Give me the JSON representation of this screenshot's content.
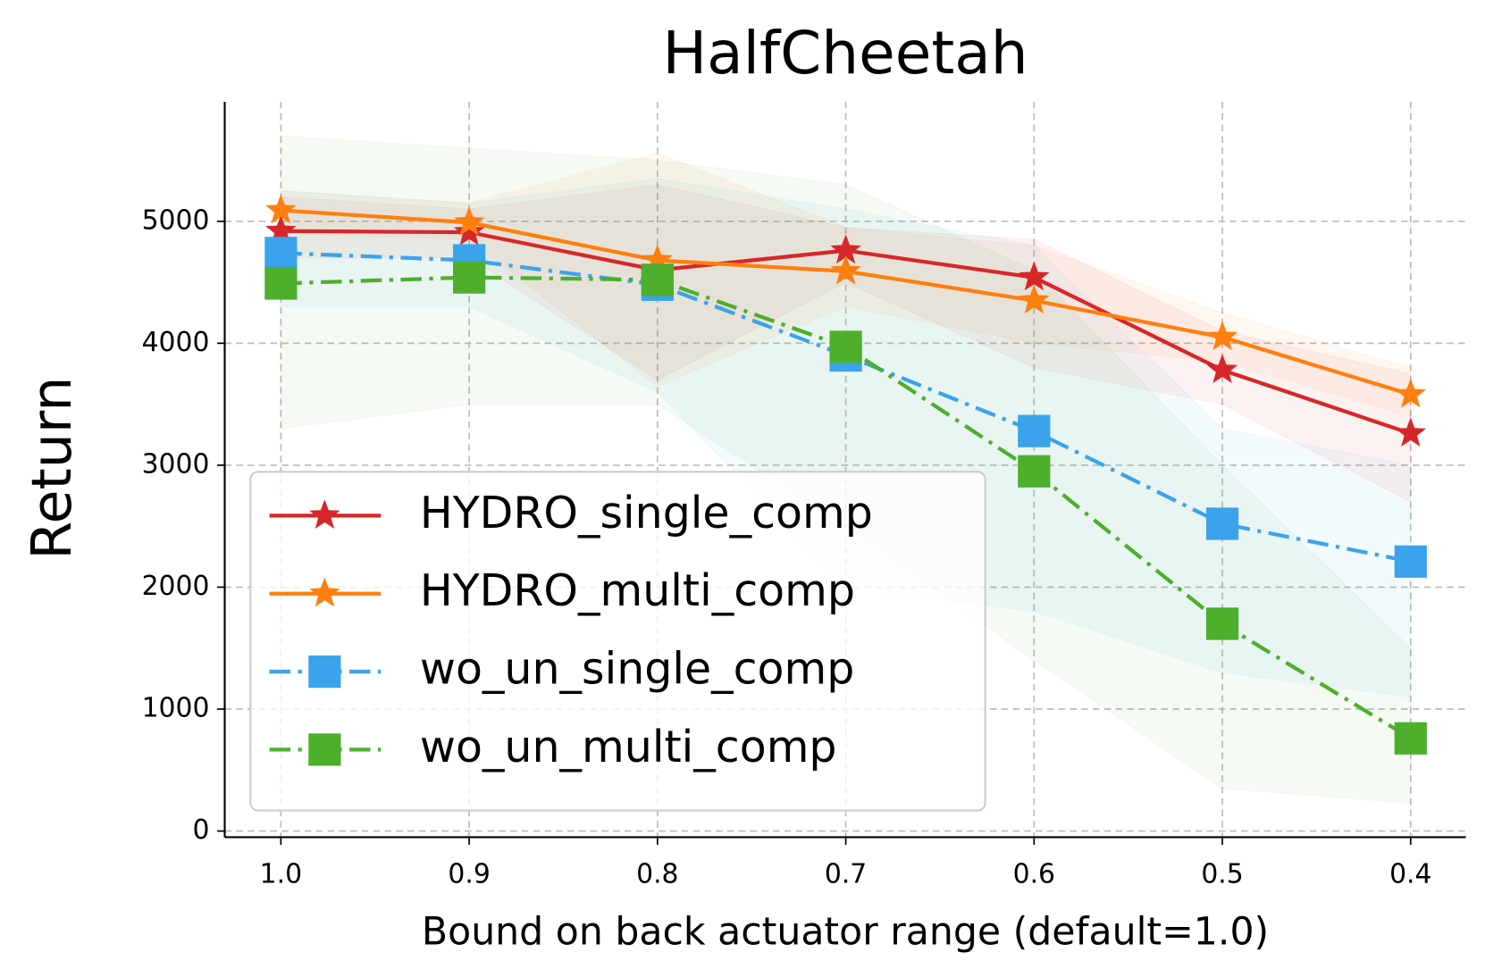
{
  "chart_data": {
    "type": "line",
    "title": "HalfCheetah",
    "x_label": "Bound on back actuator range (default=1.0)",
    "y_label": "Return",
    "categories": [
      "1.0",
      "0.9",
      "0.8",
      "0.7",
      "0.6",
      "0.5",
      "0.4"
    ],
    "ylim": [
      -50,
      5980
    ],
    "yticks": [
      0,
      1000,
      2000,
      3000,
      4000,
      5000
    ],
    "grid": true,
    "legend": "lower left",
    "series": [
      {
        "name": "HYDRO_single_comp",
        "color": "#d62728",
        "linestyle": "solid",
        "marker": "star",
        "values": [
          4920,
          4910,
          4600,
          4760,
          4540,
          3780,
          3260
        ],
        "upper": [
          5200,
          5100,
          5300,
          4950,
          4850,
          4100,
          3750
        ],
        "lower": [
          4700,
          4700,
          3700,
          4500,
          3800,
          3500,
          2700
        ]
      },
      {
        "name": "HYDRO_multi_comp",
        "color": "#ff7f0e",
        "linestyle": "solid",
        "marker": "star",
        "values": [
          5090,
          4990,
          4680,
          4590,
          4350,
          4050,
          3580
        ],
        "upper": [
          5250,
          5150,
          5560,
          4950,
          4800,
          4250,
          3800
        ],
        "lower": [
          4900,
          4850,
          3650,
          4300,
          4000,
          3850,
          3400
        ]
      },
      {
        "name": "wo_un_single_comp",
        "color": "#3ba3ec",
        "linestyle": "dashdot",
        "marker": "square",
        "values": [
          4740,
          4680,
          4480,
          3900,
          3280,
          2520,
          2210
        ],
        "upper": [
          5250,
          5150,
          5350,
          5100,
          4800,
          3300,
          3000
        ],
        "lower": [
          4300,
          4300,
          3600,
          2000,
          1800,
          1300,
          1100
        ]
      },
      {
        "name": "wo_un_multi_comp",
        "color": "#4daf2c",
        "linestyle": "dashdot",
        "marker": "square",
        "values": [
          4490,
          4540,
          4520,
          3970,
          2950,
          1700,
          760
        ],
        "upper": [
          5700,
          5600,
          5500,
          5300,
          4600,
          3000,
          1500
        ],
        "lower": [
          3300,
          3500,
          3500,
          2500,
          1400,
          350,
          230
        ]
      }
    ]
  }
}
